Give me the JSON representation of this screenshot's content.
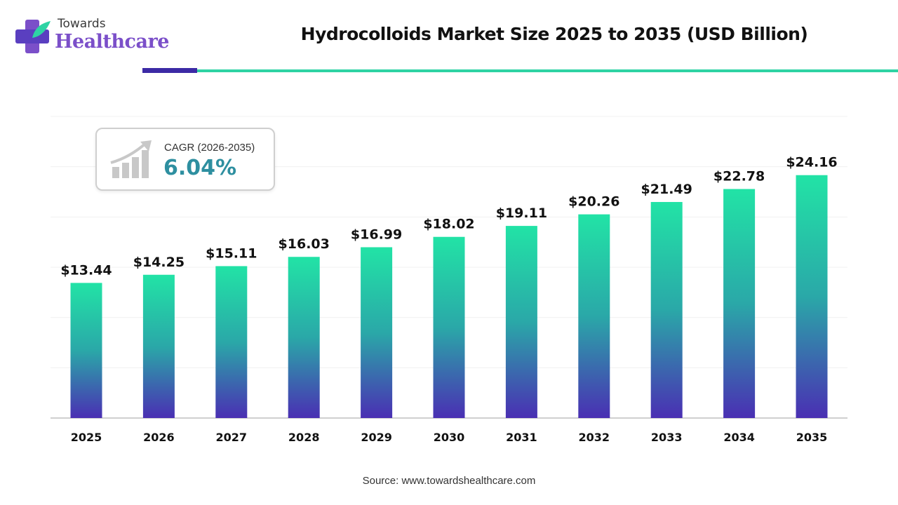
{
  "logo": {
    "line1": "Towards",
    "line2": "Healthcare"
  },
  "title": "Hydrocolloids Market Size 2025 to 2035 (USD Billion)",
  "cagr": {
    "label": "CAGR (2026-2035)",
    "value": "6.04%"
  },
  "source": "Source: www.towardshealthcare.com",
  "colors": {
    "bar_top": "#22e3a6",
    "bar_bottom": "#4a2fb3",
    "brand_purple": "#7b4fc9",
    "rule_dark": "#3c2aa5",
    "rule_teal": "#2ed3a4",
    "cagr_value": "#2e8fa0"
  },
  "chart_data": {
    "type": "bar",
    "title": "Hydrocolloids Market Size 2025 to 2035 (USD Billion)",
    "categories": [
      "2025",
      "2026",
      "2027",
      "2028",
      "2029",
      "2030",
      "2031",
      "2032",
      "2033",
      "2034",
      "2035"
    ],
    "values": [
      13.44,
      14.25,
      15.11,
      16.03,
      16.99,
      18.02,
      19.11,
      20.26,
      21.49,
      22.78,
      24.16
    ],
    "data_labels": [
      "$13.44",
      "$14.25",
      "$15.11",
      "$16.03",
      "$16.99",
      "$18.02",
      "$19.11",
      "$20.26",
      "$21.49",
      "$22.78",
      "$24.16"
    ],
    "ylim": [
      0,
      30
    ],
    "grid": true,
    "legend": "none"
  }
}
